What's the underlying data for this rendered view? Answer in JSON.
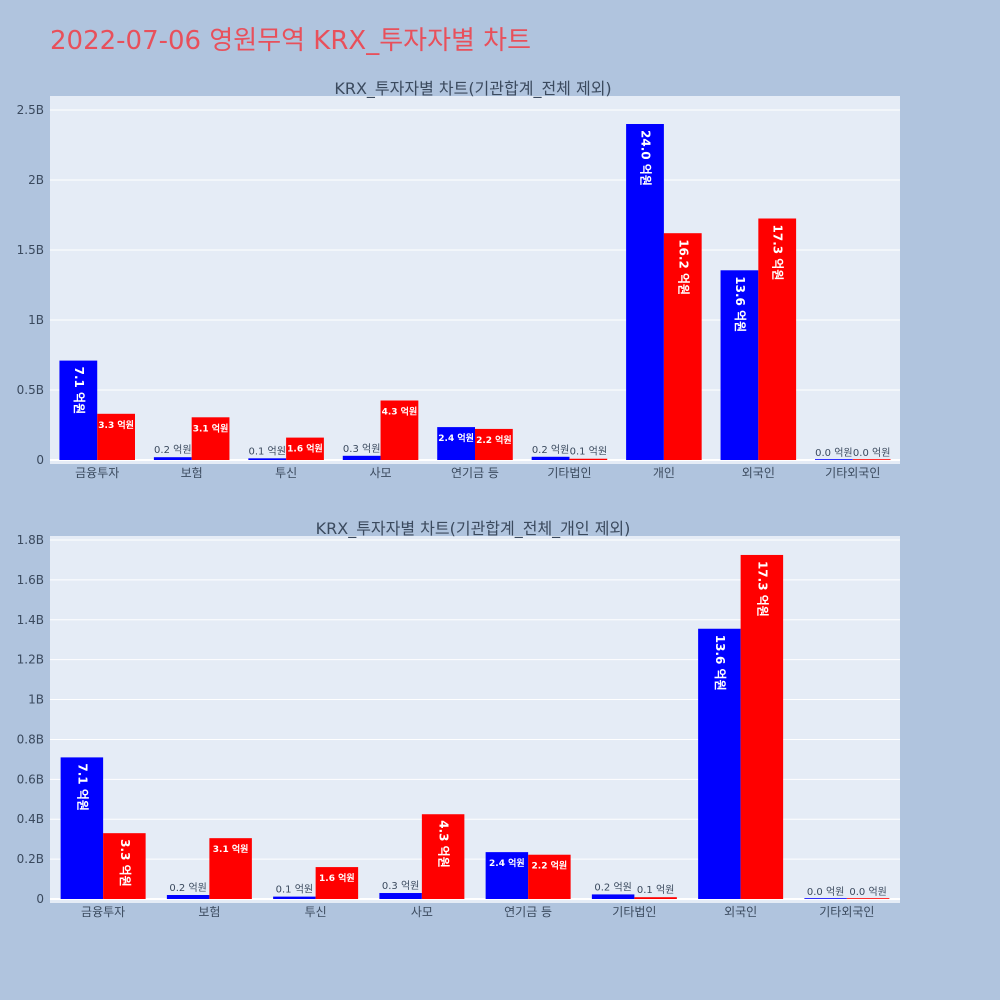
{
  "title": "2022-07-06 영원무역 KRX_투자자별 차트",
  "colors": {
    "buy": "#0000ff",
    "sell": "#ff0000",
    "plot_bg": "#e5ecf6",
    "page_bg": "#b0c4de",
    "title": "#e8505b"
  },
  "chart_data": [
    {
      "type": "bar",
      "title": "KRX_투자자별 차트(기관합계_전체 제외)",
      "categories": [
        "금융투자",
        "보험",
        "투신",
        "사모",
        "연기금 등",
        "기타법인",
        "개인",
        "외국인",
        "기타외국인"
      ],
      "series": [
        {
          "values": [
            710000000,
            20000000,
            12000000,
            30000000,
            235000000,
            23000000,
            2400000000,
            1355000000,
            1000000
          ],
          "labels": [
            "7.1 억원",
            "0.2 억원",
            "0.1 억원",
            "0.3 억원",
            "2.4 억원",
            "0.2 억원",
            "24.0 억원",
            "13.6 억원",
            "0.0 억원"
          ]
        },
        {
          "values": [
            330000000,
            305000000,
            160000000,
            425000000,
            222000000,
            9000000,
            1620000000,
            1725000000,
            1000000
          ],
          "labels": [
            "3.3 억원",
            "3.1 억원",
            "1.6 억원",
            "4.3 억원",
            "2.2 억원",
            "0.1 억원",
            "16.2 억원",
            "17.3 억원",
            "0.0 억원"
          ]
        }
      ],
      "ylim": [
        0,
        2600000000
      ],
      "yticks": [
        0,
        500000000,
        1000000000,
        1500000000,
        2000000000,
        2500000000
      ],
      "ytick_labels": [
        "0",
        "0.5B",
        "1B",
        "1.5B",
        "2B",
        "2.5B"
      ],
      "grid": true
    },
    {
      "type": "bar",
      "title": "KRX_투자자별 차트(기관합계_전체_개인 제외)",
      "categories": [
        "금융투자",
        "보험",
        "투신",
        "사모",
        "연기금 등",
        "기타법인",
        "외국인",
        "기타외국인"
      ],
      "series": [
        {
          "values": [
            710000000,
            20000000,
            12000000,
            30000000,
            235000000,
            23000000,
            1355000000,
            1000000
          ],
          "labels": [
            "7.1 억원",
            "0.2 억원",
            "0.1 억원",
            "0.3 억원",
            "2.4 억원",
            "0.2 억원",
            "13.6 억원",
            "0.0 억원"
          ]
        },
        {
          "values": [
            330000000,
            305000000,
            160000000,
            425000000,
            222000000,
            9000000,
            1725000000,
            1000000
          ],
          "labels": [
            "3.3 억원",
            "3.1 억원",
            "1.6 억원",
            "4.3 억원",
            "2.2 억원",
            "0.1 억원",
            "17.3 억원",
            "0.0 억원"
          ]
        }
      ],
      "ylim": [
        0,
        1820000000
      ],
      "yticks": [
        0,
        200000000,
        400000000,
        600000000,
        800000000,
        1000000000,
        1200000000,
        1400000000,
        1600000000,
        1800000000
      ],
      "ytick_labels": [
        "0",
        "0.2B",
        "0.4B",
        "0.6B",
        "0.8B",
        "1B",
        "1.2B",
        "1.4B",
        "1.6B",
        "1.8B"
      ],
      "grid": true
    }
  ]
}
